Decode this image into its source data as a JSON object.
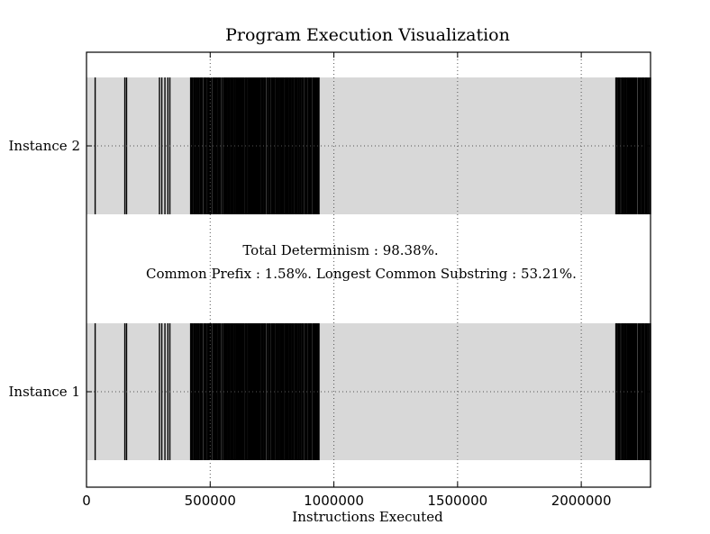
{
  "chart_data": {
    "type": "bar",
    "title": "Program Execution Visualization",
    "xlabel": "Instructions Executed",
    "ylabel": "",
    "xlim": [
      0,
      2280000
    ],
    "x_ticks": [
      0,
      500000,
      1000000,
      1500000,
      2000000
    ],
    "x_tick_labels": [
      "0",
      "500000",
      "1000000",
      "1500000",
      "2000000"
    ],
    "grid": true,
    "categories": [
      "Instance 1",
      "Instance 2"
    ],
    "bar_extent": [
      0,
      2280000
    ],
    "colors": {
      "bar_fill": "#d8d8d8",
      "event_line": "#000000",
      "grid": "#555555"
    },
    "annotations": [
      "Total Determinism : 98.38%.",
      "Common Prefix : 1.58%. Longest Common Substring : 53.21%."
    ],
    "summary": {
      "total_determinism_pct": 98.38,
      "common_prefix_pct": 1.58,
      "longest_common_substring_pct": 53.21
    },
    "event_clusters": [
      {
        "start": 35000,
        "end": 35000,
        "count": 1
      },
      {
        "start": 155000,
        "end": 162000,
        "count": 2
      },
      {
        "start": 295000,
        "end": 340000,
        "count": 5
      },
      {
        "start": 420000,
        "end": 940000,
        "count": 150
      },
      {
        "start": 2140000,
        "end": 2280000,
        "count": 40
      }
    ]
  }
}
